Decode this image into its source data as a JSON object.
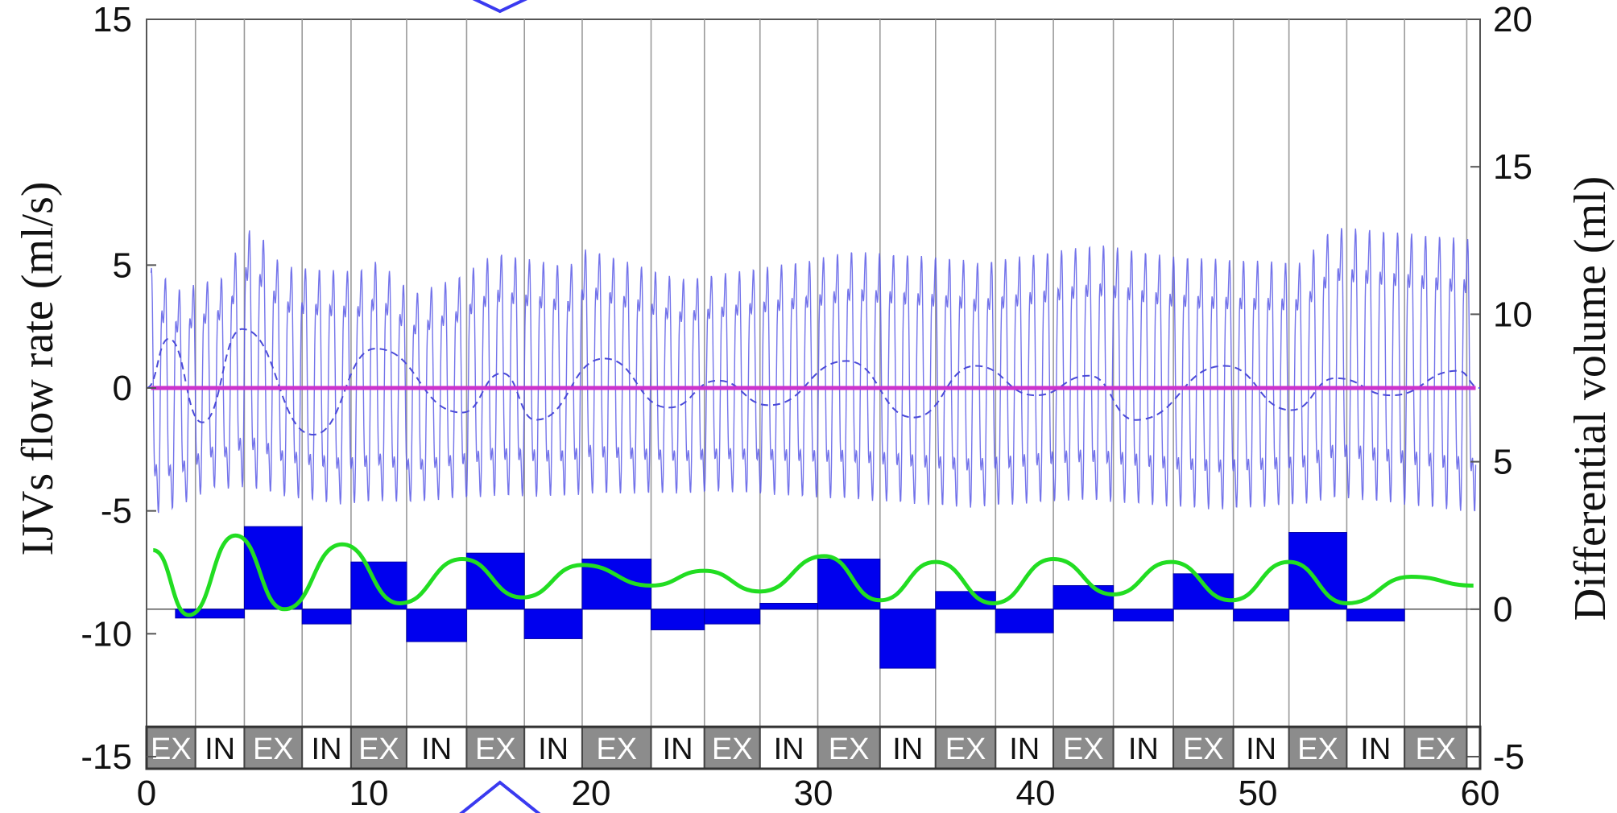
{
  "chart_data": {
    "type": "line",
    "xlabel": "",
    "ylabel_left": "IJVs  flow rate (ml/s)",
    "ylabel_right": "Differential volume (ml)",
    "xlim": [
      0,
      60
    ],
    "ylim_left": [
      -15,
      15
    ],
    "ylim_right": [
      -5,
      20
    ],
    "x_ticks": [
      "0",
      "10",
      "20",
      "30",
      "40",
      "50",
      "60"
    ],
    "y_ticks_left": [
      "15",
      "5",
      "0",
      "-5",
      "-10",
      "-15"
    ],
    "y_ticks_right": [
      "20",
      "15",
      "10",
      "5",
      "0",
      "-5"
    ],
    "grid": "vertical lines at phase boundaries",
    "colors": {
      "flow_line": "#5a5ae6",
      "dashed_line": "#4a4ad8",
      "zero_line": "#cc33cc",
      "bars": "#0000ee",
      "sine": "#22dd22",
      "ex_fill": "#8c8c8c",
      "arrow": "#3a3af0"
    },
    "phase_boundaries": [
      0,
      2.2,
      4.4,
      7.0,
      9.2,
      11.7,
      14.4,
      17.0,
      19.6,
      22.7,
      25.1,
      27.6,
      30.2,
      33.0,
      35.5,
      38.2,
      40.8,
      43.5,
      46.2,
      48.9,
      51.4,
      54.0,
      56.6,
      59.4
    ],
    "phases": [
      "EX",
      "IN",
      "EX",
      "IN",
      "EX",
      "IN",
      "EX",
      "IN",
      "EX",
      "IN",
      "EX",
      "IN",
      "EX",
      "IN",
      "EX",
      "IN",
      "EX",
      "IN",
      "EX",
      "IN",
      "EX",
      "IN",
      "EX"
    ],
    "differential_volume_bars": [
      {
        "x0": 1.3,
        "x1": 4.4,
        "value": -0.3
      },
      {
        "x0": 4.4,
        "x1": 7.0,
        "value": 2.8
      },
      {
        "x0": 7.0,
        "x1": 9.2,
        "value": -0.5
      },
      {
        "x0": 9.2,
        "x1": 11.7,
        "value": 1.6
      },
      {
        "x0": 11.7,
        "x1": 14.4,
        "value": -1.1
      },
      {
        "x0": 14.4,
        "x1": 17.0,
        "value": 1.9
      },
      {
        "x0": 17.0,
        "x1": 19.6,
        "value": -1.0
      },
      {
        "x0": 19.6,
        "x1": 22.7,
        "value": 1.7
      },
      {
        "x0": 22.7,
        "x1": 25.1,
        "value": -0.7
      },
      {
        "x0": 25.1,
        "x1": 27.6,
        "value": -0.5
      },
      {
        "x0": 27.6,
        "x1": 30.2,
        "value": 0.2
      },
      {
        "x0": 30.2,
        "x1": 33.0,
        "value": 1.7
      },
      {
        "x0": 33.0,
        "x1": 35.5,
        "value": -2.0
      },
      {
        "x0": 35.5,
        "x1": 38.2,
        "value": 0.6
      },
      {
        "x0": 38.2,
        "x1": 40.8,
        "value": -0.8
      },
      {
        "x0": 40.8,
        "x1": 43.5,
        "value": 0.8
      },
      {
        "x0": 43.5,
        "x1": 46.2,
        "value": -0.4
      },
      {
        "x0": 46.2,
        "x1": 48.9,
        "value": 1.2
      },
      {
        "x0": 48.9,
        "x1": 51.4,
        "value": -0.4
      },
      {
        "x0": 51.4,
        "x1": 54.0,
        "value": 2.6
      },
      {
        "x0": 54.0,
        "x1": 56.6,
        "value": -0.4
      }
    ],
    "differential_volume_curve": [
      {
        "x": 0.3,
        "y": 2.0
      },
      {
        "x": 1.9,
        "y": -0.2
      },
      {
        "x": 4.0,
        "y": 2.5
      },
      {
        "x": 6.2,
        "y": 0.0
      },
      {
        "x": 8.8,
        "y": 2.2
      },
      {
        "x": 11.4,
        "y": 0.2
      },
      {
        "x": 14.2,
        "y": 1.7
      },
      {
        "x": 16.9,
        "y": 0.4
      },
      {
        "x": 19.6,
        "y": 1.5
      },
      {
        "x": 22.7,
        "y": 0.8
      },
      {
        "x": 25.1,
        "y": 1.3
      },
      {
        "x": 27.6,
        "y": 0.6
      },
      {
        "x": 30.5,
        "y": 1.8
      },
      {
        "x": 33.0,
        "y": 0.3
      },
      {
        "x": 35.5,
        "y": 1.6
      },
      {
        "x": 38.1,
        "y": 0.2
      },
      {
        "x": 40.8,
        "y": 1.7
      },
      {
        "x": 43.5,
        "y": 0.5
      },
      {
        "x": 46.1,
        "y": 1.6
      },
      {
        "x": 48.8,
        "y": 0.3
      },
      {
        "x": 51.4,
        "y": 1.6
      },
      {
        "x": 54.0,
        "y": 0.2
      },
      {
        "x": 56.9,
        "y": 1.1
      },
      {
        "x": 59.7,
        "y": 0.8
      }
    ],
    "flow_rate_peaks": [
      {
        "x": 0.4,
        "y": 6.0
      },
      {
        "x": 1.4,
        "y": 5.0
      },
      {
        "x": 3.6,
        "y": 5.5
      },
      {
        "x": 4.4,
        "y": 7.7
      },
      {
        "x": 5.2,
        "y": 7.3
      },
      {
        "x": 6.1,
        "y": 6.0
      },
      {
        "x": 9.5,
        "y": 5.8
      },
      {
        "x": 10.4,
        "y": 6.3
      },
      {
        "x": 12.0,
        "y": 4.8
      },
      {
        "x": 14.0,
        "y": 5.5
      },
      {
        "x": 15.7,
        "y": 6.6
      },
      {
        "x": 19.0,
        "y": 6.0
      },
      {
        "x": 19.8,
        "y": 6.8
      },
      {
        "x": 24.0,
        "y": 5.4
      },
      {
        "x": 25.0,
        "y": 5.5
      },
      {
        "x": 30.0,
        "y": 6.3
      },
      {
        "x": 31.6,
        "y": 6.7
      },
      {
        "x": 36.5,
        "y": 6.4
      },
      {
        "x": 37.4,
        "y": 6.2
      },
      {
        "x": 42.9,
        "y": 7.0
      },
      {
        "x": 46.0,
        "y": 6.5
      },
      {
        "x": 52.0,
        "y": 6.2
      },
      {
        "x": 53.4,
        "y": 7.8
      },
      {
        "x": 59.6,
        "y": 7.3
      }
    ],
    "flow_rate_troughs": [
      {
        "x": 0.7,
        "y": -6.2
      },
      {
        "x": 3.0,
        "y": -5.0
      },
      {
        "x": 5.1,
        "y": -5.3
      },
      {
        "x": 8.7,
        "y": -5.8
      },
      {
        "x": 13.7,
        "y": -5.5
      },
      {
        "x": 17.6,
        "y": -5.5
      },
      {
        "x": 25.8,
        "y": -5.2
      },
      {
        "x": 30.9,
        "y": -5.6
      },
      {
        "x": 36.8,
        "y": -6.0
      },
      {
        "x": 41.8,
        "y": -5.7
      },
      {
        "x": 48.2,
        "y": -6.1
      },
      {
        "x": 53.8,
        "y": -5.7
      },
      {
        "x": 59.7,
        "y": -6.3
      }
    ],
    "respiratory_flow_dashed": [
      {
        "x": 0.0,
        "y": 0.0
      },
      {
        "x": 1.0,
        "y": 2.0
      },
      {
        "x": 2.5,
        "y": -1.4
      },
      {
        "x": 4.3,
        "y": 2.4
      },
      {
        "x": 7.5,
        "y": -1.9
      },
      {
        "x": 10.3,
        "y": 1.6
      },
      {
        "x": 14.2,
        "y": -1.0
      },
      {
        "x": 16.0,
        "y": 0.6
      },
      {
        "x": 17.5,
        "y": -1.3
      },
      {
        "x": 20.6,
        "y": 1.2
      },
      {
        "x": 23.5,
        "y": -0.8
      },
      {
        "x": 25.7,
        "y": 0.3
      },
      {
        "x": 28.0,
        "y": -0.7
      },
      {
        "x": 31.5,
        "y": 1.1
      },
      {
        "x": 34.5,
        "y": -1.2
      },
      {
        "x": 37.3,
        "y": 0.9
      },
      {
        "x": 40.0,
        "y": -0.3
      },
      {
        "x": 42.4,
        "y": 0.5
      },
      {
        "x": 44.5,
        "y": -1.3
      },
      {
        "x": 48.5,
        "y": 0.9
      },
      {
        "x": 51.5,
        "y": -0.9
      },
      {
        "x": 53.5,
        "y": 0.4
      },
      {
        "x": 56.0,
        "y": -0.3
      },
      {
        "x": 59.0,
        "y": 0.7
      },
      {
        "x": 60.0,
        "y": 0.0
      }
    ],
    "zero_line_y": 0,
    "markers": [
      {
        "type": "arrow-down",
        "x": 15.9
      },
      {
        "type": "arrow-up",
        "x": 15.9
      }
    ]
  }
}
